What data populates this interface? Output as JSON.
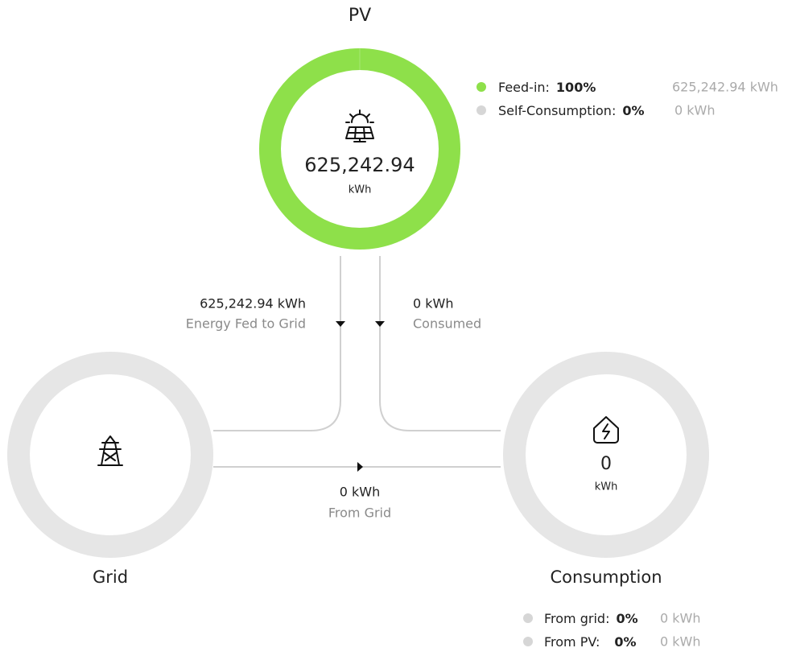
{
  "pv": {
    "title": "PV",
    "value": "625,242.94",
    "unit": "kWh",
    "legend": [
      {
        "label": "Feed-in:",
        "percent": "100%",
        "amount": "625,242.94 kWh"
      },
      {
        "label": "Self-Consumption:",
        "percent": "0%",
        "amount": "0 kWh"
      }
    ]
  },
  "flows": {
    "fed_to_grid": {
      "amount": "625,242.94 kWh",
      "label": "Energy Fed to Grid"
    },
    "consumed": {
      "amount": "0 kWh",
      "label": "Consumed"
    },
    "from_grid": {
      "amount": "0 kWh",
      "label": "From Grid"
    }
  },
  "grid": {
    "title": "Grid"
  },
  "consumption": {
    "title": "Consumption",
    "value": "0",
    "unit": "kWh",
    "legend": [
      {
        "label": "From grid:",
        "percent": "0%",
        "amount": "0 kWh"
      },
      {
        "label": "From PV:",
        "percent": "0%",
        "amount": "0 kWh"
      }
    ]
  }
}
